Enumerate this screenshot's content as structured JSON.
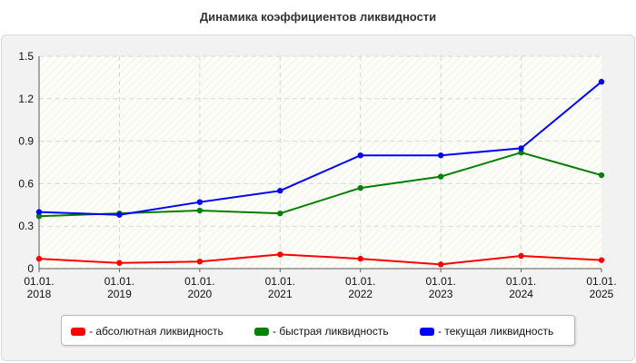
{
  "chart_data": {
    "type": "line",
    "title": "Динамика коэффициентов ликвидности",
    "categories": [
      [
        "01.01.",
        "2018"
      ],
      [
        "01.01.",
        "2019"
      ],
      [
        "01.01.",
        "2020"
      ],
      [
        "01.01.",
        "2021"
      ],
      [
        "01.01.",
        "2022"
      ],
      [
        "01.01.",
        "2023"
      ],
      [
        "01.01.",
        "2024"
      ],
      [
        "01.01.",
        "2025"
      ]
    ],
    "y_ticks": [
      "0",
      "0.3",
      "0.6",
      "0.9",
      "1.2",
      "1.5"
    ],
    "ylim": [
      0,
      1.5
    ],
    "grid": true,
    "legend_position": "bottom",
    "series": [
      {
        "name": "- абсолютная ликвидность",
        "color": "#ff0000",
        "values": [
          0.07,
          0.04,
          0.05,
          0.1,
          0.07,
          0.03,
          0.09,
          0.06
        ]
      },
      {
        "name": "- быстрая ликвидность",
        "color": "#008000",
        "values": [
          0.37,
          0.39,
          0.41,
          0.39,
          0.57,
          0.65,
          0.82,
          0.66
        ]
      },
      {
        "name": "- текущая ликвидность",
        "color": "#0000ff",
        "values": [
          0.4,
          0.38,
          0.47,
          0.55,
          0.8,
          0.8,
          0.85,
          1.32
        ]
      }
    ]
  }
}
